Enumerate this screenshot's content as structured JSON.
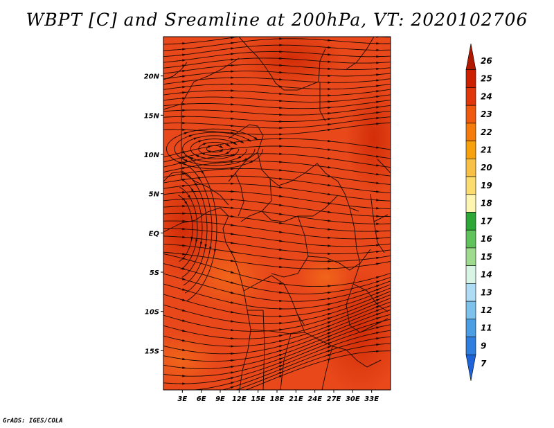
{
  "title": "WBPT [C] and Sreamline at 200hPa, VT: 2020102706",
  "credit": "GrADS: IGES/COLA",
  "map": {
    "lon_range": [
      0,
      36
    ],
    "lat_range": [
      -20,
      25
    ],
    "lat_ticks": [
      "20N",
      "15N",
      "10N",
      "5N",
      "EQ",
      "5S",
      "10S",
      "15S"
    ],
    "lat_tick_values": [
      20,
      15,
      10,
      5,
      0,
      -5,
      -10,
      -15
    ],
    "lon_ticks": [
      "3E",
      "6E",
      "9E",
      "12E",
      "15E",
      "18E",
      "21E",
      "24E",
      "27E",
      "30E",
      "33E"
    ],
    "lon_tick_values": [
      3,
      6,
      9,
      12,
      15,
      18,
      21,
      24,
      27,
      30,
      33
    ],
    "background_color": "#e8481a"
  },
  "colorbar": {
    "labels": [
      "26",
      "25",
      "24",
      "23",
      "22",
      "21",
      "20",
      "19",
      "18",
      "17",
      "16",
      "15",
      "14",
      "13",
      "12",
      "11",
      "9",
      "7"
    ],
    "colors": [
      "#b01800",
      "#cc2000",
      "#e0380a",
      "#f05a0f",
      "#f57c0a",
      "#f7a10c",
      "#f9c046",
      "#fcdc6e",
      "#fdf5b0",
      "#2da836",
      "#5fc25b",
      "#9edb8e",
      "#d8f4e4",
      "#aedcf4",
      "#7cc2ec",
      "#4b9ee3",
      "#2f7fe0",
      "#1e64d8"
    ]
  }
}
